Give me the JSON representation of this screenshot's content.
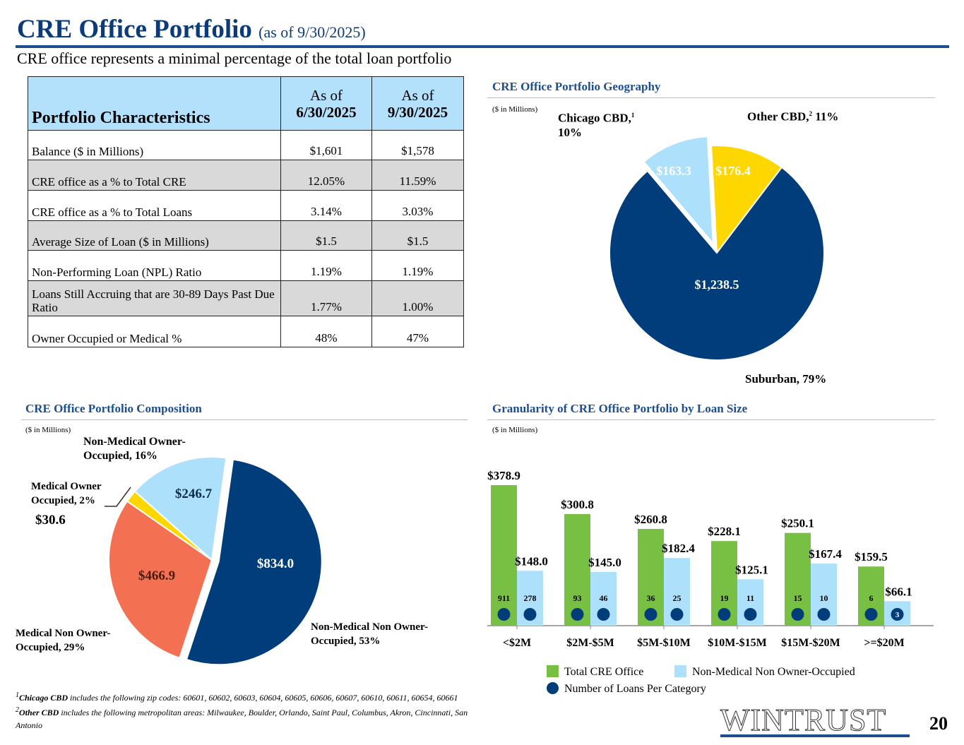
{
  "header": {
    "title": "CRE Office Portfolio",
    "title_note": "(as of 9/30/2025)",
    "subtitle": "CRE office represents a minimal percentage of the total loan portfolio"
  },
  "table": {
    "header": [
      "Portfolio Characteristics",
      "As of",
      "6/30/2025",
      "As of",
      "9/30/2025"
    ],
    "rows": [
      {
        "label": "Balance ($ in Millions)",
        "q2": "$1,601",
        "q3": "$1,578"
      },
      {
        "label": "CRE office as a % to Total CRE",
        "q2": "12.05%",
        "q3": "11.59%"
      },
      {
        "label": "CRE office as a % to Total Loans",
        "q2": "3.14%",
        "q3": "3.03%"
      },
      {
        "label": "Average Size of Loan ($ in Millions)",
        "q2": "$1.5",
        "q3": "$1.5"
      },
      {
        "label": "Non-Performing Loan (NPL) Ratio",
        "q2": "1.19%",
        "q3": "1.19%"
      },
      {
        "label": "Loans Still Accruing that are 30-89 Days Past Due Ratio",
        "q2": "1.77%",
        "q3": "1.00%"
      },
      {
        "label": "Owner Occupied or Medical %",
        "q2": "48%",
        "q3": "47%"
      }
    ]
  },
  "chart_data": [
    {
      "type": "pie",
      "title": "CRE Office Portfolio Geography",
      "unit": "($ in Millions)",
      "slices": [
        {
          "name": "Other CBD",
          "sup": "2",
          "pct": "11%",
          "value": 176.4,
          "label": "$176.4",
          "color": "#ffd700"
        },
        {
          "name": "Suburban",
          "pct": "79%",
          "value": 1238.5,
          "label": "$1,238.5",
          "color": "#003d7a"
        },
        {
          "name": "Chicago CBD",
          "sup": "1",
          "pct": "10%",
          "value": 163.3,
          "label": "$163.3",
          "color": "#ade0fb"
        }
      ]
    },
    {
      "type": "pie",
      "title": "CRE Office Portfolio Composition",
      "unit": "($ in Millions)",
      "slices": [
        {
          "name": "Non-Medical Non Owner-Occupied",
          "pct": "53%",
          "value": 834.0,
          "label": "$834.0",
          "color": "#003d7a"
        },
        {
          "name": "Medical Non Owner-Occupied",
          "pct": "29%",
          "value": 466.9,
          "label": "$466.9",
          "color": "#f37052"
        },
        {
          "name": "Medical Owner Occupied",
          "pct": "2%",
          "value": 30.6,
          "label": "$30.6",
          "color": "#ffd700"
        },
        {
          "name": "Non-Medical Owner-Occupied",
          "pct": "16%",
          "value": 246.7,
          "label": "$246.7",
          "color": "#ade0fb"
        }
      ]
    },
    {
      "type": "bar",
      "title": "Granularity of CRE Office Portfolio by Loan Size",
      "unit": "($ in Millions)",
      "categories": [
        "<$2M",
        "$2M-$5M",
        "$5M-$10M",
        "$10M-$15M",
        "$15M-$20M",
        ">=$20M"
      ],
      "series": [
        {
          "name": "Total CRE Office",
          "color": "#77c043",
          "values": [
            378.9,
            300.8,
            260.8,
            228.1,
            250.1,
            159.5
          ],
          "labels": [
            "$378.9",
            "$300.8",
            "$260.8",
            "$228.1",
            "$250.1",
            "$159.5"
          ],
          "loan_counts": [
            "911",
            "93",
            "36",
            "19",
            "15",
            "6"
          ]
        },
        {
          "name": "Non-Medical Non Owner-Occupied",
          "color": "#ade0fb",
          "values": [
            148.0,
            145.0,
            182.4,
            125.1,
            167.4,
            66.1
          ],
          "labels": [
            "$148.0",
            "$145.0",
            "$182.4",
            "$125.1",
            "$167.4",
            "$66.1"
          ],
          "loan_counts": [
            "278",
            "46",
            "25",
            "11",
            "10",
            "3"
          ]
        }
      ],
      "count_marker": {
        "name": "Number of Loans Per Category",
        "color": "#003d7a"
      },
      "ylim": [
        0,
        380
      ]
    }
  ],
  "footnotes": {
    "f1_sup": "1",
    "f1_bold": "Chicago CBD",
    "f1_text": " includes the following zip codes: 60601, 60602, 60603, 60604, 60605, 60606, 60607, 60610, 60611, 60654, 60661",
    "f2_sup": "2",
    "f2_bold": "Other CBD",
    "f2_text": " includes the following metropolitan areas: Milwaukee, Boulder, Orlando, Saint Paul, Columbus, Akron, Cincinnati, San Antonio"
  },
  "logo": "WINTRUST",
  "page_number": "20"
}
